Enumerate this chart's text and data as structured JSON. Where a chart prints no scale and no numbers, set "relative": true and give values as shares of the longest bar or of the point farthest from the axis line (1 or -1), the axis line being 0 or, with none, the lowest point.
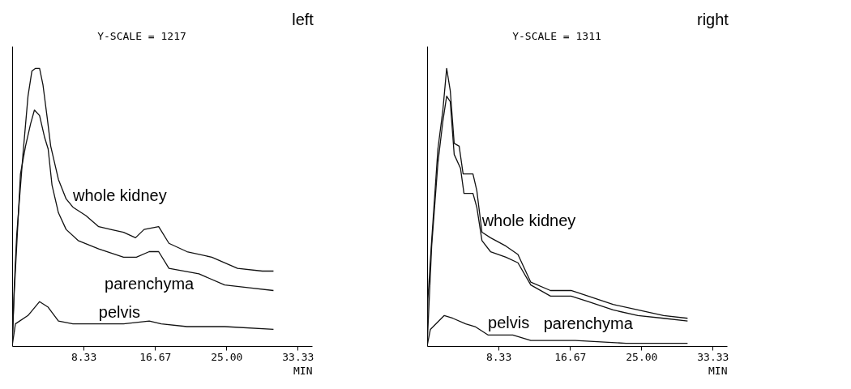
{
  "chart_data": [
    {
      "type": "line",
      "title": "left",
      "xlabel": "MIN",
      "relative": true,
      "annotations": [
        "Y-SCALE =   1217"
      ],
      "xlim": [
        0,
        35
      ],
      "xticks": [
        8.33,
        16.67,
        {
          "value": 25,
          "label": "25.00"
        },
        33.33
      ],
      "grid": false,
      "legend": false,
      "marker": "none",
      "line_style": "solid",
      "series": [
        {
          "name": "whole kidney",
          "color": "#111111",
          "x": [
            0,
            0.24,
            0.53,
            1.26,
            1.85,
            2.3,
            2.7,
            3.2,
            3.6,
            4.1,
            4.5,
            5.4,
            6.3,
            7.1,
            8.6,
            10.1,
            11.5,
            13.0,
            14.4,
            15.4,
            17.1,
            18.3,
            20.4,
            23.3,
            26.3,
            29.2,
            30.5
          ],
          "values": [
            0,
            0.21,
            0.4,
            0.69,
            0.9,
            0.99,
            1,
            1,
            0.94,
            0.82,
            0.72,
            0.6,
            0.53,
            0.5,
            0.47,
            0.43,
            0.42,
            0.41,
            0.39,
            0.42,
            0.43,
            0.37,
            0.34,
            0.32,
            0.28,
            0.27,
            0.27
          ]
        },
        {
          "name": "parenchyma",
          "color": "#111111",
          "x": [
            0,
            0.24,
            0.97,
            1.56,
            2.15,
            2.6,
            3.2,
            3.8,
            4.2,
            4.65,
            5.4,
            6.3,
            7.7,
            10.1,
            13.0,
            14.5,
            16.0,
            17.1,
            18.3,
            21.8,
            24.8,
            27.7,
            30.5
          ],
          "values": [
            0,
            0.19,
            0.62,
            0.72,
            0.8,
            0.85,
            0.83,
            0.75,
            0.71,
            0.58,
            0.48,
            0.42,
            0.38,
            0.35,
            0.32,
            0.32,
            0.34,
            0.34,
            0.28,
            0.26,
            0.22,
            0.21,
            0.2
          ]
        },
        {
          "name": "pelvis",
          "color": "#111111",
          "x": [
            0,
            0.38,
            1.85,
            3.2,
            4.2,
            5.4,
            7.1,
            10.1,
            13.0,
            16.0,
            17.4,
            20.4,
            24.8,
            30.5
          ],
          "values": [
            0,
            0.08,
            0.11,
            0.16,
            0.14,
            0.09,
            0.08,
            0.08,
            0.08,
            0.09,
            0.08,
            0.07,
            0.07,
            0.06
          ]
        }
      ]
    },
    {
      "type": "line",
      "title": "right",
      "xlabel": "MIN",
      "relative": true,
      "annotations": [
        "Y-SCALE =   1311"
      ],
      "xlim": [
        0,
        35
      ],
      "xticks": [
        8.33,
        16.67,
        {
          "value": 25,
          "label": "25.00"
        },
        33.33
      ],
      "grid": false,
      "legend": false,
      "marker": "none",
      "line_style": "solid",
      "series": [
        {
          "name": "whole kidney",
          "color": "#111111",
          "x": [
            0,
            0.09,
            0.53,
            1.26,
            1.84,
            2.28,
            2.7,
            3.16,
            3.74,
            4.2,
            5.35,
            5.8,
            6.4,
            7.4,
            9.2,
            10.6,
            12.1,
            14.4,
            16.8,
            18.8,
            21.7,
            24.6,
            27.6,
            30.4
          ],
          "values": [
            0,
            0.17,
            0.38,
            0.71,
            0.85,
            1,
            0.92,
            0.73,
            0.72,
            0.62,
            0.62,
            0.56,
            0.41,
            0.39,
            0.36,
            0.33,
            0.23,
            0.2,
            0.2,
            0.18,
            0.15,
            0.13,
            0.11,
            0.1
          ]
        },
        {
          "name": "parenchyma",
          "color": "#111111",
          "x": [
            0,
            0.53,
            1.26,
            1.84,
            2.28,
            2.7,
            3.16,
            3.9,
            4.3,
            5.35,
            5.8,
            6.4,
            7.4,
            9.2,
            10.6,
            12.1,
            14.4,
            16.8,
            18.8,
            21.7,
            24.6,
            27.6,
            30.4
          ],
          "values": [
            0,
            0.36,
            0.66,
            0.81,
            0.9,
            0.88,
            0.69,
            0.64,
            0.55,
            0.55,
            0.5,
            0.38,
            0.34,
            0.32,
            0.3,
            0.22,
            0.18,
            0.18,
            0.16,
            0.13,
            0.11,
            0.1,
            0.09
          ]
        },
        {
          "name": "pelvis",
          "color": "#111111",
          "x": [
            0,
            0.38,
            2.0,
            3.0,
            4.5,
            5.6,
            7.1,
            10.0,
            12.1,
            17.3,
            23.2,
            30.4
          ],
          "values": [
            0,
            0.06,
            0.11,
            0.1,
            0.08,
            0.07,
            0.04,
            0.04,
            0.02,
            0.02,
            0.01,
            0.01
          ]
        }
      ]
    }
  ]
}
